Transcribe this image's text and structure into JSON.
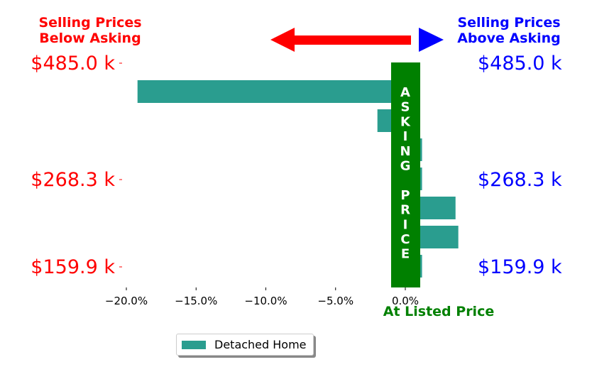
{
  "chart_data": {
    "type": "bar",
    "orientation": "horizontal",
    "x": [
      -19.2,
      -2.0,
      1.2,
      1.2,
      3.6,
      3.8,
      1.2
    ],
    "xlim": [
      -22.5,
      5.0
    ],
    "xticks": [
      -20,
      -15,
      -10,
      -5,
      0
    ],
    "xtick_labels": [
      "−20.0%",
      "−15.0%",
      "−10.0%",
      "−5.0%",
      "0.0%"
    ],
    "left_price_labels": [
      "$485.0 k",
      "$268.3 k",
      "$159.9 k"
    ],
    "right_price_labels": [
      "$485.0 k",
      "$268.3 k",
      "$159.9 k"
    ],
    "series": [
      {
        "name": "Detached Home",
        "color": "#2a9d8f"
      }
    ],
    "grid": false,
    "legend_position": "bottom-center"
  },
  "annotations": {
    "below_asking": [
      "Selling Prices",
      "Below Asking"
    ],
    "above_asking": [
      "Selling Prices",
      "Above Asking"
    ],
    "asking_price_letters": [
      "A",
      "S",
      "K",
      "I",
      "N",
      "G",
      "",
      "P",
      "R",
      "I",
      "C",
      "E"
    ],
    "at_listed_price": "At Listed Price"
  },
  "colors": {
    "bar": "#2a9d8f",
    "asking_band": "#008000",
    "left_arrow": "#ff0000",
    "right_arrow": "#0000ff",
    "below_text": "#ff0000",
    "above_text": "#0000ff",
    "listed_text": "#008000"
  },
  "legend": {
    "label": "Detached Home"
  }
}
